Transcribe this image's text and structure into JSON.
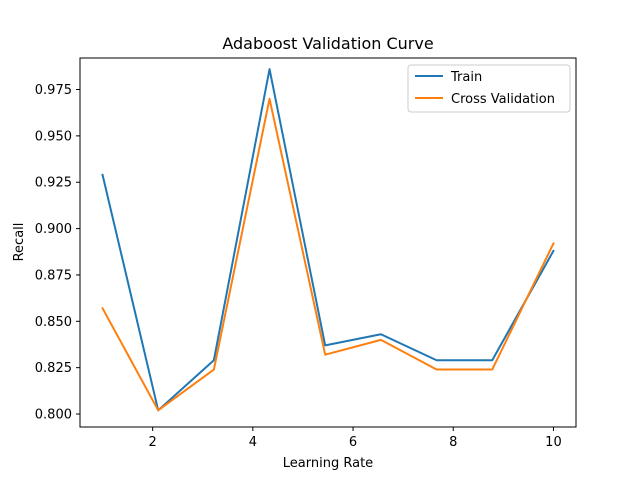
{
  "chart_data": {
    "type": "line",
    "title": "Adaboost Validation Curve",
    "xlabel": "Learning Rate",
    "ylabel": "Recall",
    "xlim": [
      0.55,
      10.45
    ],
    "ylim": [
      0.793,
      0.992
    ],
    "xticks": [
      2,
      4,
      6,
      8,
      10
    ],
    "xtick_labels": [
      "2",
      "4",
      "6",
      "8",
      "10"
    ],
    "yticks": [
      0.8,
      0.825,
      0.85,
      0.875,
      0.9,
      0.925,
      0.95,
      0.975
    ],
    "ytick_labels": [
      "0.800",
      "0.825",
      "0.850",
      "0.875",
      "0.900",
      "0.925",
      "0.950",
      "0.975"
    ],
    "x": [
      1.0,
      2.111,
      3.222,
      4.333,
      5.444,
      6.556,
      7.667,
      8.778,
      10.0
    ],
    "series": [
      {
        "name": "Train",
        "color": "#1f77b4",
        "values": [
          0.929,
          0.802,
          0.829,
          0.986,
          0.837,
          0.843,
          0.829,
          0.829,
          0.888
        ]
      },
      {
        "name": "Cross Validation",
        "color": "#ff7f0e",
        "values": [
          0.857,
          0.802,
          0.824,
          0.97,
          0.832,
          0.84,
          0.824,
          0.824,
          0.892
        ]
      }
    ],
    "grid": false,
    "legend_position": "top-right"
  }
}
